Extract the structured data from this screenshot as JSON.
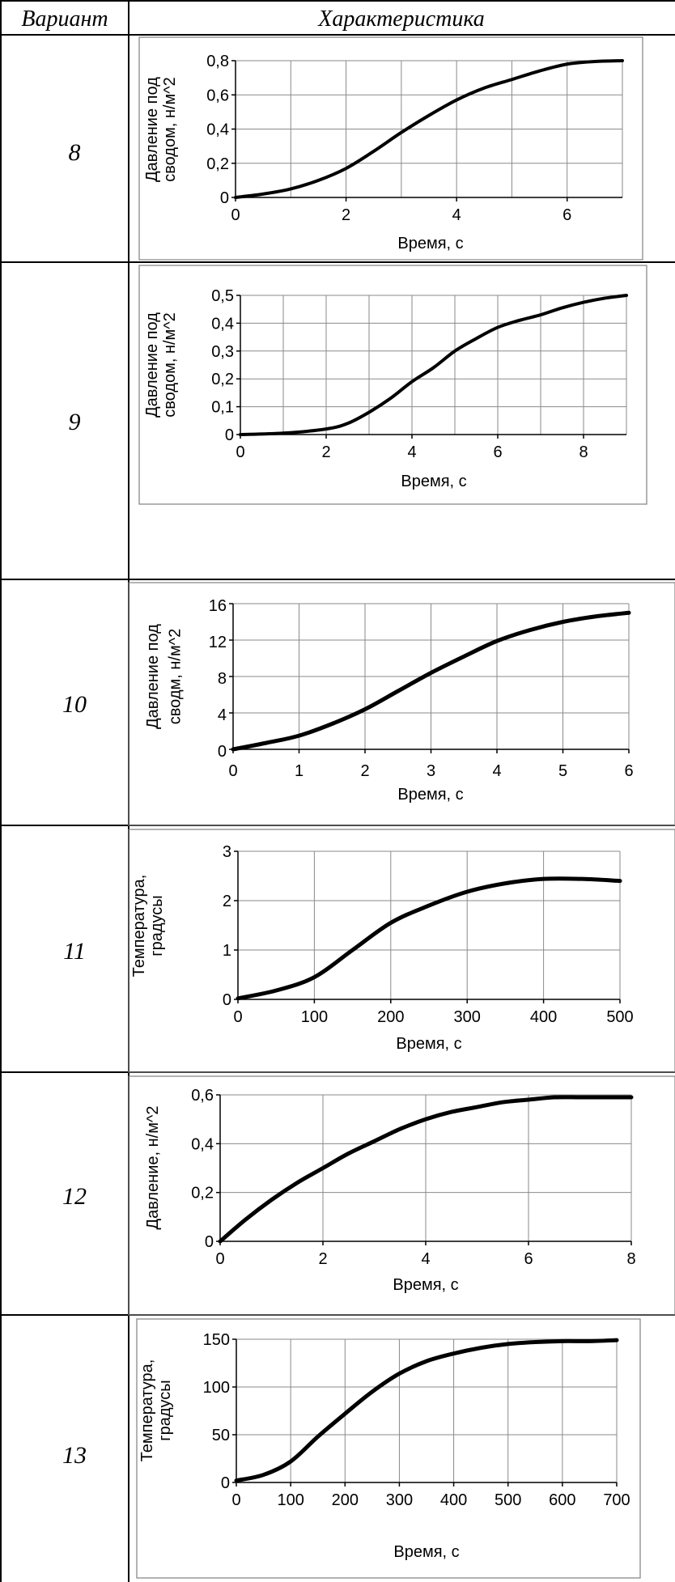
{
  "table": {
    "header": {
      "variant": "Вариант",
      "characteristic": "Характеристика"
    }
  },
  "rows": [
    {
      "variant": "8"
    },
    {
      "variant": "9"
    },
    {
      "variant": "10"
    },
    {
      "variant": "11"
    },
    {
      "variant": "12"
    },
    {
      "variant": "13"
    }
  ],
  "chart_data": [
    {
      "type": "line",
      "xlabel": "Время, с",
      "ylabel": [
        "Давление под",
        "сводом, н/м^2"
      ],
      "xlim": [
        0,
        7
      ],
      "ylim": [
        0,
        0.8
      ],
      "xticks": [
        0,
        2,
        4,
        6
      ],
      "xtick_labels": [
        "0",
        "2",
        "4",
        "6"
      ],
      "yticks": [
        0,
        0.2,
        0.4,
        0.6,
        0.8
      ],
      "ytick_labels": [
        "0",
        "0,2",
        "0,4",
        "0,6",
        "0,8"
      ],
      "grid_x": [
        0,
        1,
        2,
        3,
        4,
        5,
        6,
        7
      ],
      "x": [
        0,
        0.5,
        1,
        1.5,
        2,
        2.5,
        3,
        3.5,
        4,
        4.5,
        5,
        5.5,
        6,
        6.5,
        7
      ],
      "y": [
        0,
        0.02,
        0.05,
        0.1,
        0.17,
        0.27,
        0.38,
        0.48,
        0.57,
        0.64,
        0.69,
        0.74,
        0.78,
        0.795,
        0.8
      ]
    },
    {
      "type": "line",
      "xlabel": "Время, с",
      "ylabel": [
        "Давление под",
        "сводом, н/м^2"
      ],
      "xlim": [
        0,
        9
      ],
      "ylim": [
        0,
        0.5
      ],
      "xticks": [
        0,
        2,
        4,
        6,
        8
      ],
      "xtick_labels": [
        "0",
        "2",
        "4",
        "6",
        "8"
      ],
      "yticks": [
        0,
        0.1,
        0.2,
        0.3,
        0.4,
        0.5
      ],
      "ytick_labels": [
        "0",
        "0,1",
        "0,2",
        "0,3",
        "0,4",
        "0,5"
      ],
      "grid_x": [
        0,
        1,
        2,
        3,
        4,
        5,
        6,
        7,
        8,
        9
      ],
      "x": [
        0,
        1,
        2,
        2.5,
        3,
        3.5,
        4,
        4.5,
        5,
        5.5,
        6,
        6.5,
        7,
        7.5,
        8,
        8.5,
        9
      ],
      "y": [
        0,
        0.005,
        0.02,
        0.04,
        0.08,
        0.13,
        0.19,
        0.24,
        0.3,
        0.345,
        0.385,
        0.41,
        0.43,
        0.455,
        0.475,
        0.49,
        0.5
      ]
    },
    {
      "type": "line",
      "xlabel": "Время, с",
      "ylabel": [
        "Давление под",
        "сводм, н/м^2"
      ],
      "xlim": [
        0,
        6
      ],
      "ylim": [
        0,
        16
      ],
      "xticks": [
        0,
        1,
        2,
        3,
        4,
        5,
        6
      ],
      "xtick_labels": [
        "0",
        "1",
        "2",
        "3",
        "4",
        "5",
        "6"
      ],
      "yticks": [
        0,
        4,
        8,
        12,
        16
      ],
      "ytick_labels": [
        "0",
        "4",
        "8",
        "12",
        "16"
      ],
      "grid_x": [
        0,
        1,
        2,
        3,
        4,
        5,
        6
      ],
      "x": [
        0,
        0.5,
        1,
        1.5,
        2,
        2.5,
        3,
        3.5,
        4,
        4.5,
        5,
        5.5,
        6
      ],
      "y": [
        0,
        0.7,
        1.5,
        2.8,
        4.4,
        6.4,
        8.4,
        10.2,
        11.9,
        13.1,
        14,
        14.6,
        15
      ]
    },
    {
      "type": "line",
      "xlabel": "Время, с",
      "ylabel": [
        "Температура,",
        "градусы"
      ],
      "xlim": [
        0,
        500
      ],
      "ylim": [
        0,
        3
      ],
      "xticks": [
        0,
        100,
        200,
        300,
        400,
        500
      ],
      "xtick_labels": [
        "0",
        "100",
        "200",
        "300",
        "400",
        "500"
      ],
      "yticks": [
        0,
        1,
        2,
        3
      ],
      "ytick_labels": [
        "0",
        "1",
        "2",
        "3"
      ],
      "grid_x": [
        0,
        100,
        200,
        300,
        400,
        500
      ],
      "x": [
        0,
        50,
        100,
        150,
        200,
        250,
        300,
        350,
        400,
        450,
        500
      ],
      "y": [
        0.02,
        0.18,
        0.45,
        1.0,
        1.55,
        1.9,
        2.18,
        2.35,
        2.44,
        2.44,
        2.4
      ]
    },
    {
      "type": "line",
      "xlabel": "Время, с",
      "ylabel": [
        "Давление, н/м^2"
      ],
      "xlim": [
        0,
        8
      ],
      "ylim": [
        0,
        0.6
      ],
      "xticks": [
        0,
        2,
        4,
        6,
        8
      ],
      "xtick_labels": [
        "0",
        "2",
        "4",
        "6",
        "8"
      ],
      "yticks": [
        0,
        0.2,
        0.4,
        0.6
      ],
      "ytick_labels": [
        "0",
        "0,2",
        "0,4",
        "0,6"
      ],
      "grid_x": [
        0,
        2,
        4,
        6,
        8
      ],
      "x": [
        0,
        0.5,
        1,
        1.5,
        2,
        2.5,
        3,
        3.5,
        4,
        4.5,
        5,
        5.5,
        6,
        6.5,
        7,
        7.5,
        8
      ],
      "y": [
        0,
        0.09,
        0.17,
        0.24,
        0.3,
        0.36,
        0.41,
        0.46,
        0.5,
        0.53,
        0.55,
        0.57,
        0.58,
        0.59,
        0.59,
        0.59,
        0.59
      ]
    },
    {
      "type": "line",
      "xlabel": "Время, с",
      "ylabel": [
        "Температура,",
        "градусы"
      ],
      "xlim": [
        0,
        700
      ],
      "ylim": [
        0,
        150
      ],
      "xticks": [
        0,
        100,
        200,
        300,
        400,
        500,
        600,
        700
      ],
      "xtick_labels": [
        "0",
        "100",
        "200",
        "300",
        "400",
        "500",
        "600",
        "700"
      ],
      "yticks": [
        0,
        50,
        100,
        150
      ],
      "ytick_labels": [
        "0",
        "50",
        "100",
        "150"
      ],
      "grid_x": [
        0,
        100,
        200,
        300,
        400,
        500,
        600,
        700
      ],
      "x": [
        0,
        50,
        100,
        150,
        200,
        250,
        300,
        350,
        400,
        450,
        500,
        550,
        600,
        650,
        700
      ],
      "y": [
        2,
        8,
        22,
        48,
        72,
        95,
        114,
        127,
        135,
        141,
        145,
        147,
        148,
        148,
        149
      ]
    }
  ]
}
